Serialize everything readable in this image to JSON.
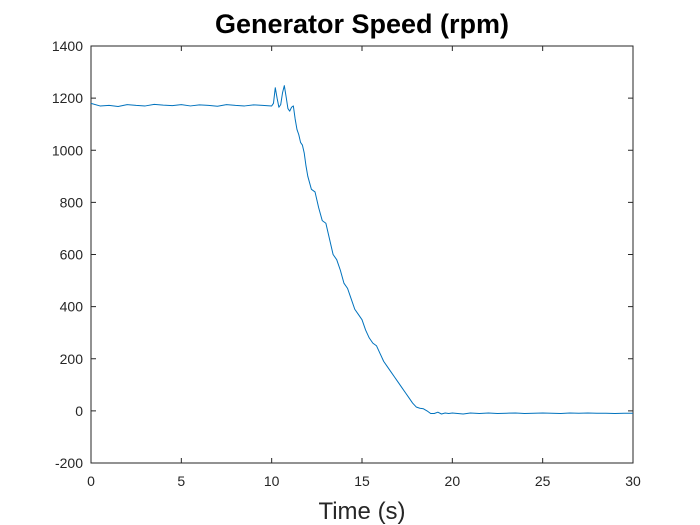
{
  "chart_data": {
    "type": "line",
    "title": "Generator Speed (rpm)",
    "xlabel": "Time (s)",
    "ylabel": "",
    "xlim": [
      0,
      30
    ],
    "ylim": [
      -200,
      1400
    ],
    "x_ticks": [
      0,
      5,
      10,
      15,
      20,
      25,
      30
    ],
    "y_ticks": [
      -200,
      0,
      200,
      400,
      600,
      800,
      1000,
      1200,
      1400
    ],
    "grid": false,
    "legend": "none",
    "line_color": "#0072BD",
    "series": [
      {
        "x": [
          0,
          0.5,
          1,
          1.5,
          2,
          2.5,
          3,
          3.5,
          4,
          4.5,
          5,
          5.5,
          6,
          6.5,
          7,
          7.5,
          8,
          8.5,
          9,
          9.5,
          10,
          10.1,
          10.2,
          10.3,
          10.4,
          10.5,
          10.6,
          10.7,
          10.8,
          10.9,
          11.0,
          11.1,
          11.2,
          11.3,
          11.4,
          11.5,
          11.6,
          11.7,
          11.8,
          11.9,
          12.0,
          12.2,
          12.4,
          12.6,
          12.8,
          13.0,
          13.2,
          13.4,
          13.6,
          13.8,
          14.0,
          14.2,
          14.4,
          14.6,
          14.8,
          15.0,
          15.2,
          15.4,
          15.6,
          15.8,
          16.0,
          16.2,
          16.4,
          16.6,
          16.8,
          17.0,
          17.2,
          17.4,
          17.6,
          17.8,
          18.0,
          18.2,
          18.4,
          18.6,
          18.8,
          19.0,
          19.2,
          19.4,
          19.6,
          19.8,
          20.0,
          20.3,
          20.6,
          21,
          21.5,
          22,
          22.5,
          23,
          23.5,
          24,
          24.5,
          25,
          25.5,
          26,
          26.5,
          27,
          27.5,
          28,
          28.5,
          29,
          29.5,
          30
        ],
        "y": [
          1180,
          1170,
          1172,
          1168,
          1175,
          1172,
          1170,
          1176,
          1173,
          1171,
          1175,
          1170,
          1174,
          1172,
          1169,
          1175,
          1172,
          1170,
          1174,
          1172,
          1170,
          1180,
          1240,
          1200,
          1165,
          1175,
          1220,
          1248,
          1205,
          1160,
          1150,
          1165,
          1170,
          1120,
          1080,
          1060,
          1030,
          1020,
          990,
          940,
          900,
          850,
          840,
          780,
          730,
          720,
          660,
          600,
          580,
          540,
          490,
          470,
          430,
          390,
          370,
          350,
          310,
          280,
          260,
          250,
          220,
          190,
          170,
          150,
          130,
          110,
          90,
          70,
          50,
          30,
          15,
          10,
          8,
          0,
          -10,
          -10,
          -5,
          -12,
          -8,
          -10,
          -8,
          -10,
          -12,
          -8,
          -10,
          -8,
          -10,
          -9,
          -8,
          -10,
          -9,
          -8,
          -9,
          -10,
          -8,
          -9,
          -8,
          -9,
          -9,
          -10,
          -9,
          -9
        ]
      }
    ]
  }
}
